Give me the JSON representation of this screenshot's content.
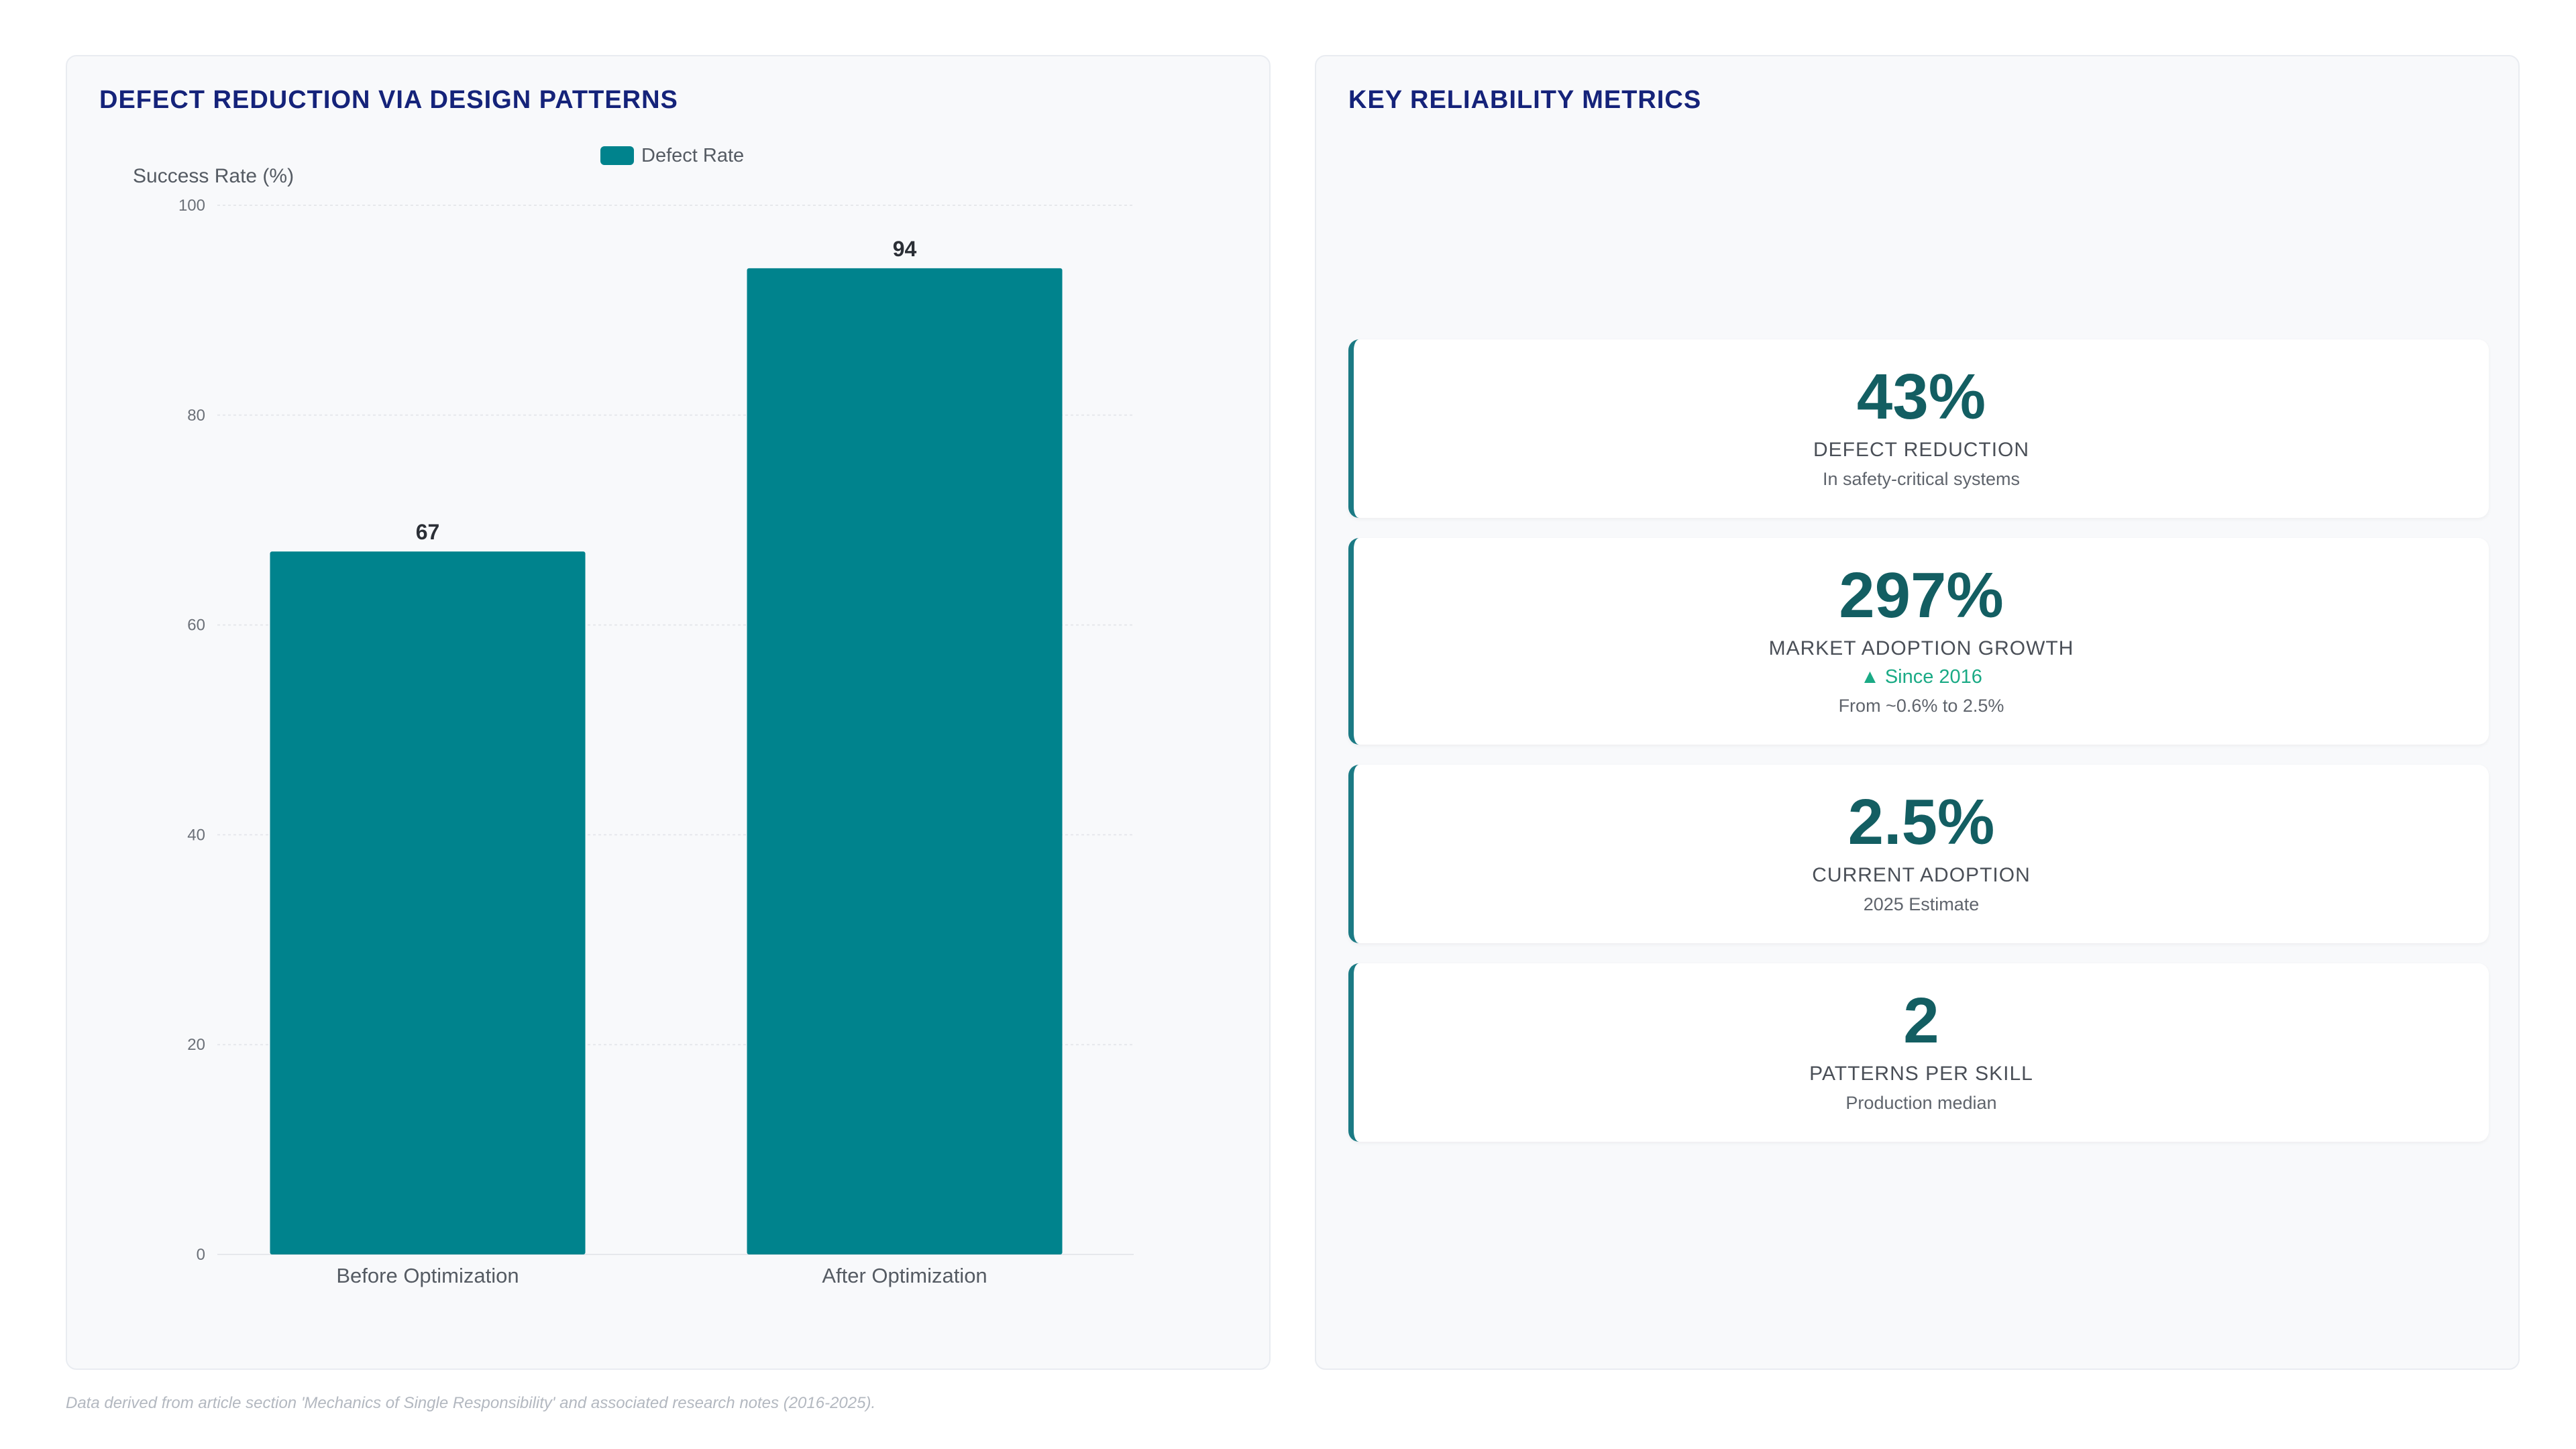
{
  "left_panel": {
    "title": "DEFECT REDUCTION VIA DESIGN PATTERNS"
  },
  "chart_data": {
    "type": "bar",
    "categories": [
      "Before Optimization",
      "After Optimization"
    ],
    "series": [
      {
        "name": "Defect Rate",
        "values": [
          67,
          94
        ],
        "color": "#00838d"
      }
    ],
    "title": "",
    "xlabel": "",
    "ylabel": "Success Rate (%)",
    "ylim": [
      0,
      100
    ],
    "yticks": [
      0,
      20,
      40,
      60,
      80,
      100
    ],
    "grid": true,
    "legend_position": "top-center",
    "data_labels": true
  },
  "right_panel": {
    "title": "KEY RELIABILITY METRICS",
    "metrics": [
      {
        "value": "43%",
        "label": "DEFECT REDUCTION",
        "note": "In safety-critical systems"
      },
      {
        "value": "297%",
        "label": "MARKET ADOPTION GROWTH",
        "trend": "▲ Since 2016",
        "note": "From ~0.6% to 2.5%"
      },
      {
        "value": "2.5%",
        "label": "CURRENT ADOPTION",
        "note": "2025 Estimate"
      },
      {
        "value": "2",
        "label": "PATTERNS PER SKILL",
        "note": "Production median"
      }
    ]
  },
  "footnote": "Data derived from article section 'Mechanics of Single Responsibility' and associated research notes (2016-2025).",
  "colors": {
    "accent": "#00838d",
    "title": "#15237a",
    "metric_value": "#135e62",
    "trend_up": "#1aaa85"
  }
}
